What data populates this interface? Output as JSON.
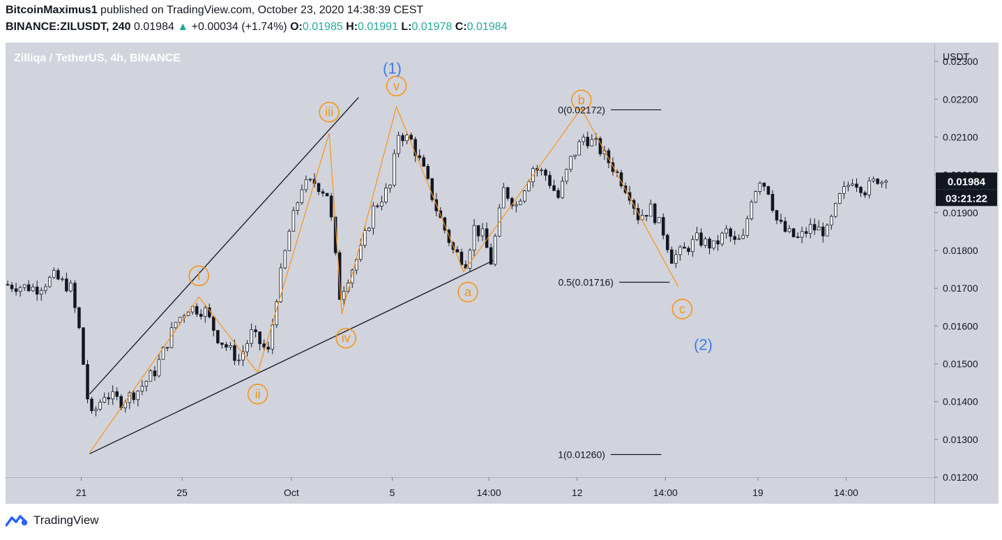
{
  "header": {
    "author": "BitcoinMaximus1",
    "published": "published on TradingView.com, October 23, 2020 14:38:39 CEST",
    "symbol": "BINANCE:ZILUSDT, 240",
    "last": "0.01984",
    "change": "+0.00034 (+1.74%)",
    "o_label": "O:",
    "o": "0.01985",
    "h_label": "H:",
    "h": "0.01991",
    "l_label": "L:",
    "l": "0.01978",
    "c_label": "C:",
    "c": "0.01984"
  },
  "footer": {
    "brand": "TradingView",
    "logo_icon": "tradingview-logo-icon"
  },
  "colors": {
    "bg": "#d1d4dc",
    "up": "#ffffff",
    "down": "#131722",
    "wave": "#f7931a",
    "major": "#3d7be6",
    "accent": "#26a69a"
  },
  "chart_data": {
    "type": "candlestick",
    "title": "Zilliqa / TetherUS, 4h, BINANCE",
    "currency": "USDT",
    "ylim": [
      0.012,
      0.0235
    ],
    "y_ticks": [
      "0.02300",
      "0.02200",
      "0.02100",
      "0.02000",
      "0.01900",
      "0.01800",
      "0.01700",
      "0.01600",
      "0.01500",
      "0.01400",
      "0.01300",
      "0.01200"
    ],
    "x_ticks": [
      {
        "label": "21",
        "t": 10
      },
      {
        "label": "25",
        "t": 34
      },
      {
        "label": "Oct",
        "t": 60
      },
      {
        "label": "5",
        "t": 84
      },
      {
        "label": "14:00",
        "t": 107
      },
      {
        "label": "12",
        "t": 128
      },
      {
        "label": "14:00",
        "t": 149
      },
      {
        "label": "19",
        "t": 171
      },
      {
        "label": "14:00",
        "t": 192
      }
    ],
    "t_range": [
      -8,
      213
    ],
    "price_tag": "0.01984",
    "countdown": "03:21:22",
    "price_path": [
      [
        -8,
        0.0171
      ],
      [
        0,
        0.017
      ],
      [
        4,
        0.0173
      ],
      [
        8,
        0.017
      ],
      [
        10,
        0.0159
      ],
      [
        12,
        0.0141
      ],
      [
        13,
        0.0136
      ],
      [
        16,
        0.0142
      ],
      [
        20,
        0.014
      ],
      [
        24,
        0.0143
      ],
      [
        28,
        0.0148
      ],
      [
        33,
        0.0161
      ],
      [
        36,
        0.0165
      ],
      [
        40,
        0.0164
      ],
      [
        43,
        0.0157
      ],
      [
        48,
        0.0151
      ],
      [
        51,
        0.0158
      ],
      [
        55,
        0.0153
      ],
      [
        57,
        0.0168
      ],
      [
        60,
        0.0185
      ],
      [
        63,
        0.0197
      ],
      [
        66,
        0.0198
      ],
      [
        69,
        0.0195
      ],
      [
        70,
        0.0188
      ],
      [
        72,
        0.0168
      ],
      [
        74,
        0.0173
      ],
      [
        77,
        0.018
      ],
      [
        80,
        0.0191
      ],
      [
        84,
        0.0197
      ],
      [
        86,
        0.0211
      ],
      [
        89,
        0.0209
      ],
      [
        92,
        0.0201
      ],
      [
        95,
        0.0191
      ],
      [
        99,
        0.018
      ],
      [
        102,
        0.0177
      ],
      [
        104,
        0.0186
      ],
      [
        106,
        0.0184
      ],
      [
        108,
        0.0177
      ],
      [
        111,
        0.0196
      ],
      [
        114,
        0.0192
      ],
      [
        118,
        0.0202
      ],
      [
        121,
        0.02
      ],
      [
        124,
        0.0194
      ],
      [
        127,
        0.0204
      ],
      [
        130,
        0.021
      ],
      [
        133,
        0.0208
      ],
      [
        137,
        0.0202
      ],
      [
        141,
        0.0195
      ],
      [
        143,
        0.0189
      ],
      [
        146,
        0.0191
      ],
      [
        149,
        0.0185
      ],
      [
        151,
        0.0178
      ],
      [
        154,
        0.018
      ],
      [
        157,
        0.0183
      ],
      [
        161,
        0.0181
      ],
      [
        164,
        0.0185
      ],
      [
        166,
        0.0182
      ],
      [
        168,
        0.0183
      ],
      [
        170,
        0.0194
      ],
      [
        172,
        0.0199
      ],
      [
        174,
        0.0196
      ],
      [
        176,
        0.0188
      ],
      [
        178,
        0.0185
      ],
      [
        181,
        0.0183
      ],
      [
        184,
        0.0186
      ],
      [
        188,
        0.0185
      ],
      [
        191,
        0.0194
      ],
      [
        194,
        0.0199
      ],
      [
        197,
        0.0196
      ],
      [
        200,
        0.0199
      ],
      [
        201,
        0.01984
      ]
    ],
    "trendlines": [
      {
        "name": "upper",
        "t1": 12,
        "p1": 0.0142,
        "t2": 76,
        "p2": 0.02205
      },
      {
        "name": "lower",
        "t1": 12,
        "p1": 0.01262,
        "t2": 108,
        "p2": 0.01773
      }
    ],
    "wave_path": [
      [
        12,
        0.01265
      ],
      [
        38,
        0.01677
      ],
      [
        52,
        0.01477
      ],
      [
        69,
        0.0211
      ],
      [
        72,
        0.01632
      ],
      [
        85,
        0.0218
      ],
      [
        101,
        0.01744
      ],
      [
        129,
        0.02176
      ],
      [
        152,
        0.01705
      ]
    ],
    "wave_labels": [
      {
        "text": "i",
        "t": 38,
        "p": 0.01733
      },
      {
        "text": "ii",
        "t": 52,
        "p": 0.0142
      },
      {
        "text": "iii",
        "t": 69,
        "p": 0.02166
      },
      {
        "text": "iv",
        "t": 73,
        "p": 0.01568
      },
      {
        "text": "v",
        "t": 85,
        "p": 0.02235
      },
      {
        "text": "a",
        "t": 102,
        "p": 0.0169
      },
      {
        "text": "b",
        "t": 129,
        "p": 0.02198
      },
      {
        "text": "c",
        "t": 153,
        "p": 0.01645
      }
    ],
    "major_labels": [
      {
        "text": "(1)",
        "t": 84,
        "p": 0.02283
      },
      {
        "text": "(2)",
        "t": 158,
        "p": 0.01552
      }
    ],
    "fib_levels": [
      {
        "label": "0(0.02172)",
        "p": 0.02172,
        "t1": 136,
        "t2": 148
      },
      {
        "label": "0.5(0.01716)",
        "p": 0.01716,
        "t1": 138,
        "t2": 150
      },
      {
        "label": "1(0.01260)",
        "p": 0.0126,
        "t1": 136,
        "t2": 148
      }
    ]
  }
}
